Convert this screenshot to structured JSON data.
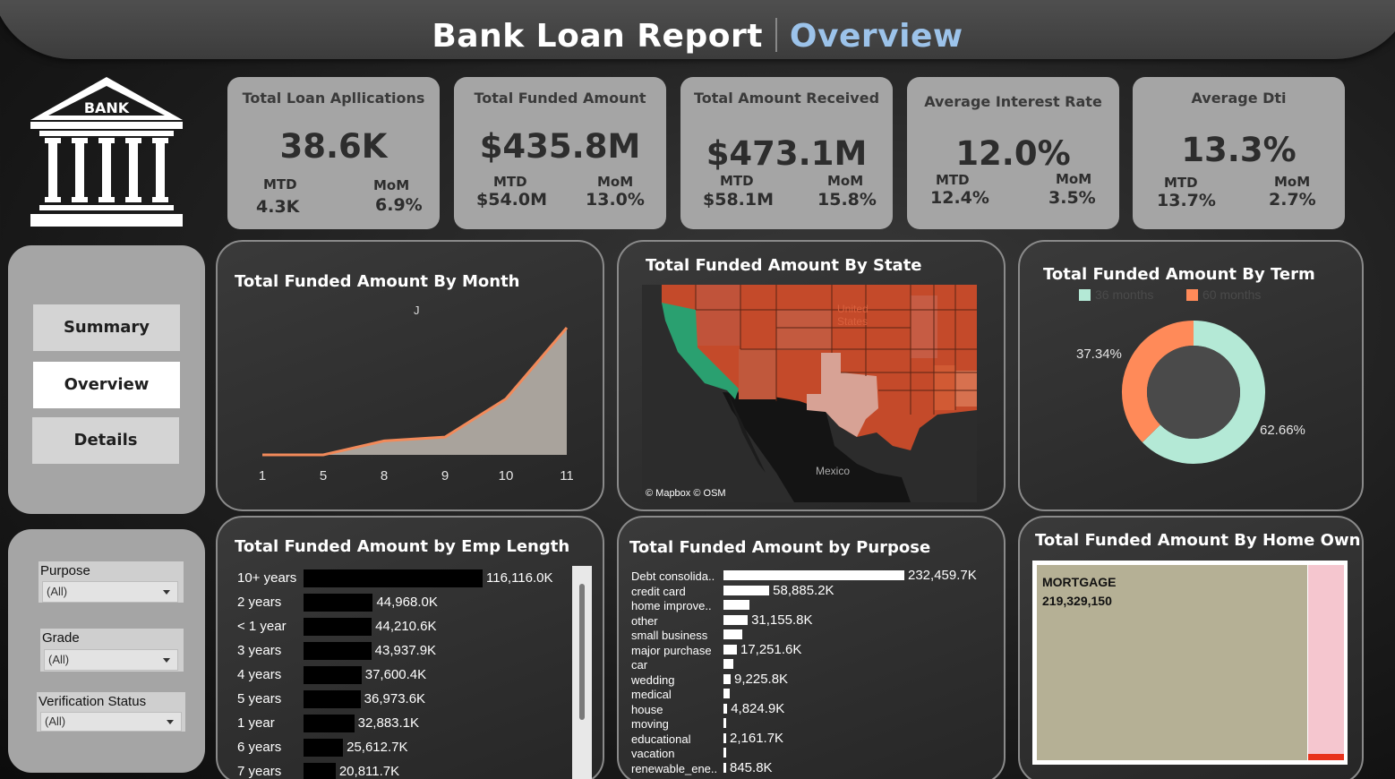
{
  "header": {
    "title_main": "Bank Loan Report",
    "title_sub": "Overview"
  },
  "logo": {
    "text": "BANK"
  },
  "kpis": [
    {
      "title": "Total Loan Apllications",
      "value": "38.6K",
      "mtd_label": "MTD",
      "mtd": "4.3K",
      "mom_label": "MoM",
      "mom": "6.9%"
    },
    {
      "title": "Total Funded Amount",
      "value": "$435.8M",
      "mtd_label": "MTD",
      "mtd": "$54.0M",
      "mom_label": "MoM",
      "mom": "13.0%"
    },
    {
      "title": "Total Amount Received",
      "value": "$473.1M",
      "mtd_label": "MTD",
      "mtd": "$58.1M",
      "mom_label": "MoM",
      "mom": "15.8%"
    },
    {
      "title": "Average Interest Rate",
      "value": "12.0%",
      "mtd_label": "MTD",
      "mtd": "12.4%",
      "mom_label": "MoM",
      "mom": "3.5%"
    },
    {
      "title": "Average Dti",
      "value": "13.3%",
      "mtd_label": "MTD",
      "mtd": "13.7%",
      "mom_label": "MoM",
      "mom": "2.7%"
    }
  ],
  "nav": {
    "summary": "Summary",
    "overview": "Overview",
    "details": "Details",
    "active": "Overview"
  },
  "filters": [
    {
      "label": "Purpose",
      "value": "(All)"
    },
    {
      "label": "Grade",
      "value": "(All)"
    },
    {
      "label": "Verification Status",
      "value": "(All)"
    }
  ],
  "colors": {
    "area_line": "#f28a5a",
    "area_fill": "#a9a39c",
    "donut_36": "#b4e9d6",
    "donut_60": "#ff8a59",
    "emp_bar": "#000000",
    "purpose_bar": "#ffffff",
    "treemap_mortgage": "#b5b095",
    "treemap_rent": "#f5c6cf",
    "treemap_own": "#e8331d"
  },
  "charts": {
    "month": {
      "title": "Total Funded Amount By Month",
      "annotation": "J",
      "chart_data": {
        "type": "area",
        "categories": [
          "1",
          "5",
          "8",
          "9",
          "10",
          "11"
        ],
        "values": [
          0,
          0,
          11,
          14,
          44,
          100
        ]
      }
    },
    "state": {
      "title": "Total Funded Amount By State",
      "label_us": "United States",
      "label_mexico": "Mexico",
      "attribution": "© Mapbox © OSM"
    },
    "term": {
      "title": "Total Funded Amount By Term",
      "chart_data": {
        "type": "pie",
        "series": [
          {
            "name": "36 months",
            "value": 62.66,
            "label": "62.66%"
          },
          {
            "name": "60 months",
            "value": 37.34,
            "label": "37.34%"
          }
        ]
      }
    },
    "emp": {
      "title": "Total Funded Amount by Emp Length",
      "chart_data": {
        "type": "bar",
        "categories": [
          "10+ years",
          "2 years",
          "< 1 year",
          "3 years",
          "4 years",
          "5 years",
          "1 year",
          "6 years",
          "7 years"
        ],
        "values": [
          116116.0,
          44968.0,
          44210.6,
          43937.9,
          37600.4,
          36973.6,
          32883.1,
          25612.7,
          20811.7
        ],
        "labels": [
          "116,116.0K",
          "44,968.0K",
          "44,210.6K",
          "43,937.9K",
          "37,600.4K",
          "36,973.6K",
          "32,883.1K",
          "25,612.7K",
          "20,811.7K"
        ]
      }
    },
    "purpose": {
      "title": "Total Funded Amount  by Purpose",
      "chart_data": {
        "type": "bar",
        "categories": [
          "Debt consolida..",
          "credit card",
          "home improve..",
          "other",
          "small business",
          "major purchase",
          "car",
          "wedding",
          "medical",
          "house",
          "moving",
          "educational",
          "vacation",
          "renewable_ene.."
        ],
        "values": [
          232459.7,
          58885.2,
          33350.0,
          31155.8,
          24123.7,
          17251.6,
          12790.0,
          9225.8,
          8060.0,
          4824.9,
          3748.0,
          2161.7,
          1967.0,
          845.8
        ],
        "labels": [
          "232,459.7K",
          "58,885.2K",
          "",
          "31,155.8K",
          "",
          "17,251.6K",
          "",
          "9,225.8K",
          "",
          "4,824.9K",
          "",
          "2,161.7K",
          "",
          "845.8K"
        ]
      }
    },
    "home": {
      "title": "Total Funded Amount By Home Own",
      "mortgage_label": "MORTGAGE",
      "mortgage_value": "219,329,150"
    }
  }
}
